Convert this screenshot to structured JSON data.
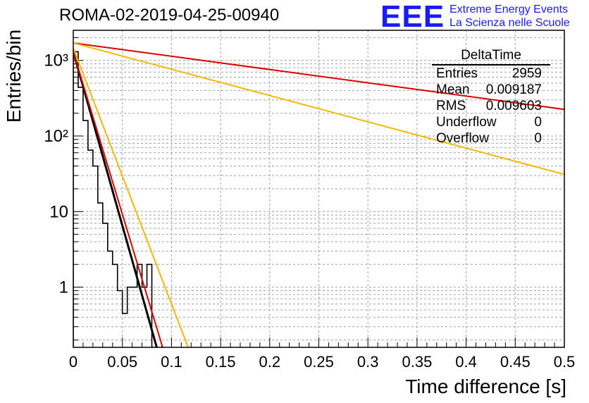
{
  "title": "ROMA-02-2019-04-25-00940",
  "logo": {
    "mark": "EEE",
    "line1": "Extreme Energy Events",
    "line2": "La Scienza nelle Scuole",
    "color": "#1a1aff"
  },
  "stats_box": {
    "title": "DeltaTime",
    "rows": [
      {
        "label": "Entries",
        "value": "2959"
      },
      {
        "label": "Mean",
        "value": "0.009187"
      },
      {
        "label": "RMS",
        "value": "0.009603"
      },
      {
        "label": "Underflow",
        "value": "0"
      },
      {
        "label": "Overflow",
        "value": "0"
      }
    ]
  },
  "chart_data": {
    "type": "line",
    "title": "ROMA-02-2019-04-25-00940",
    "xlabel": "Time difference [s]",
    "ylabel": "Entries/bin",
    "xlim": [
      0,
      0.5
    ],
    "ylim": [
      0.16,
      2500
    ],
    "yscale": "log",
    "grid": true,
    "x_ticks": [
      "0",
      "0.05",
      "0.1",
      "0.15",
      "0.2",
      "0.25",
      "0.3",
      "0.35",
      "0.4",
      "0.45",
      "0.5"
    ],
    "y_ticks": [
      {
        "value": 1,
        "label": "1"
      },
      {
        "value": 10,
        "label": "10"
      },
      {
        "value": 100,
        "label": "10²"
      },
      {
        "value": 1000,
        "label": "10³"
      }
    ],
    "histogram": {
      "color": "#000000",
      "bin_width": 0.005,
      "values": [
        1300,
        440,
        160,
        65,
        40,
        13,
        7,
        3,
        2,
        0.9,
        0.45,
        1,
        1,
        2,
        1,
        2,
        0.16
      ]
    },
    "series": [
      {
        "color": "#000000",
        "width": 3,
        "points": [
          [
            0,
            1300
          ],
          [
            0.085,
            0.16
          ]
        ]
      },
      {
        "color": "#dd0000",
        "width": 2,
        "points": [
          [
            0,
            1300
          ],
          [
            0.091,
            0.16
          ]
        ]
      },
      {
        "color": "#dd0000",
        "width": 2,
        "points": [
          [
            0,
            1700
          ],
          [
            0.5,
            225
          ]
        ]
      },
      {
        "color": "#f5b800",
        "width": 2,
        "points": [
          [
            0,
            1450
          ],
          [
            0.117,
            0.16
          ]
        ]
      },
      {
        "color": "#f5b800",
        "width": 2,
        "points": [
          [
            0,
            1700
          ],
          [
            0.5,
            31
          ]
        ]
      }
    ]
  }
}
